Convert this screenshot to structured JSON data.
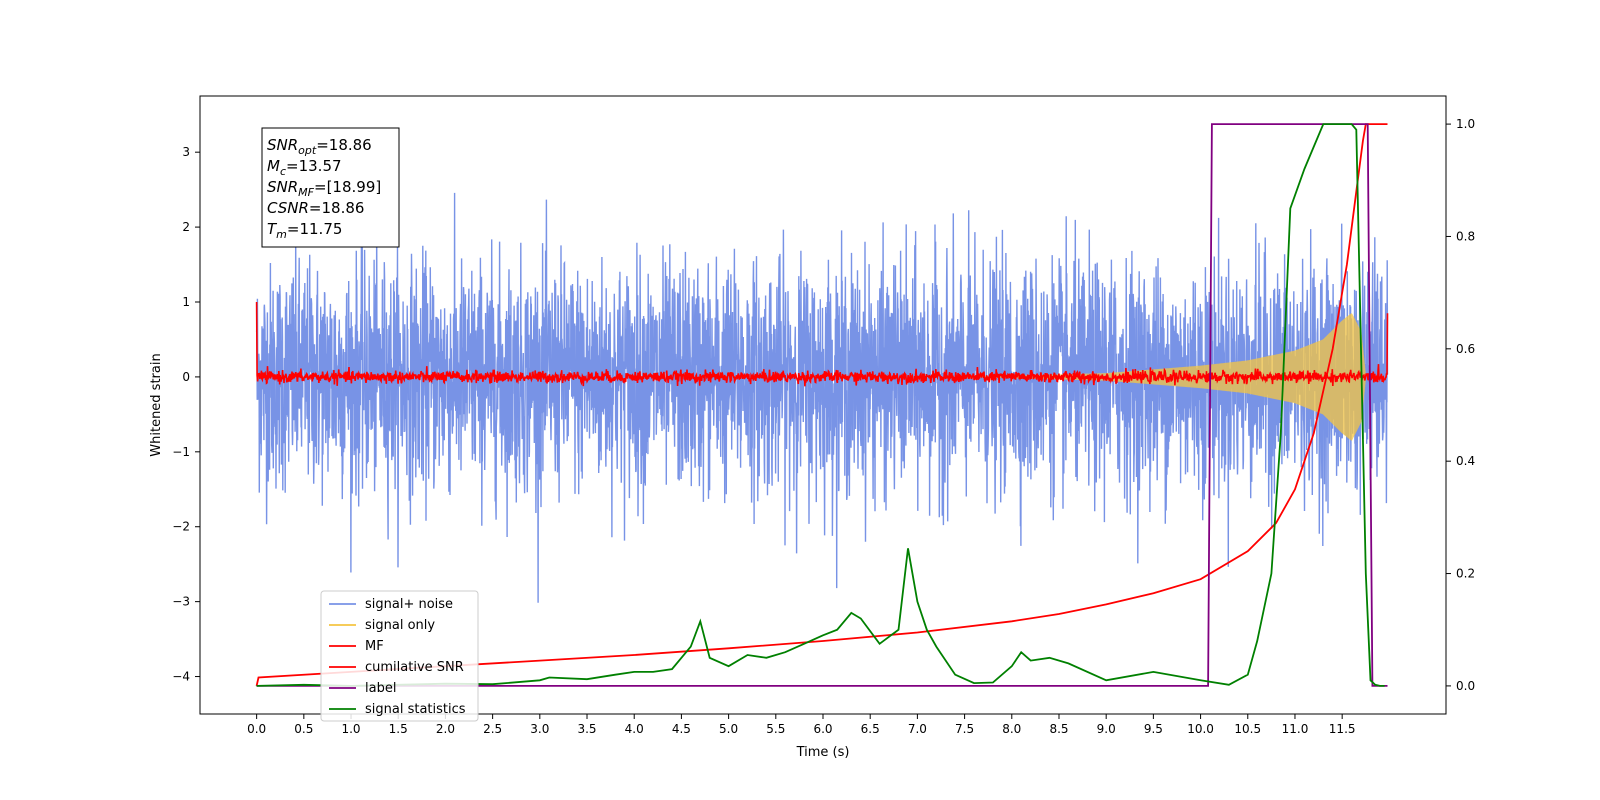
{
  "chart_data": {
    "type": "line",
    "xlabel": "Time (s)",
    "ylabel": "Whitened strain",
    "xlim": [
      -0.6,
      12.6
    ],
    "ylim": [
      -4.5,
      3.75
    ],
    "ylim_right": [
      -0.05,
      1.05
    ],
    "xticks": [
      "0.0",
      "0.5",
      "1.0",
      "1.5",
      "2.0",
      "2.5",
      "3.0",
      "3.5",
      "4.0",
      "4.5",
      "5.0",
      "5.5",
      "6.0",
      "6.5",
      "7.0",
      "7.5",
      "8.0",
      "8.5",
      "9.0",
      "9.5",
      "10.0",
      "10.5",
      "11.0",
      "11.5"
    ],
    "yticks_left": [
      "−4",
      "−3",
      "−2",
      "−1",
      "0",
      "1",
      "2",
      "3"
    ],
    "yticks_right": [
      "0.0",
      "0.2",
      "0.4",
      "0.6",
      "0.8",
      "1.0"
    ],
    "annotation": {
      "lines": [
        {
          "sym": "SNR",
          "sub": "opt",
          "val": "=18.86"
        },
        {
          "sym": "M",
          "sub": "c",
          "val": "=13.57"
        },
        {
          "sym": "SNR",
          "sub": "MF",
          "val": "=[18.99]"
        },
        {
          "sym": "CSNR",
          "sub": "",
          "val": "=18.86"
        },
        {
          "sym": "T",
          "sub": "m",
          "val": "=11.75"
        }
      ]
    },
    "legend": {
      "position": "lower-left",
      "entries": [
        {
          "label": "signal+ noise",
          "color": "#7893e6"
        },
        {
          "label": "signal only",
          "color": "#f5c542"
        },
        {
          "label": "MF",
          "color": "#ff0000"
        },
        {
          "label": "cumilative SNR",
          "color": "#ff0000"
        },
        {
          "label": "label",
          "color": "#800080"
        },
        {
          "label": "signal statistics",
          "color": "#008000"
        }
      ]
    },
    "series": [
      {
        "name": "signal+ noise",
        "color": "#7893e6",
        "axis": "left",
        "description_points": {
          "x_range": [
            0.0,
            11.98
          ],
          "approx_std": 0.75
        }
      },
      {
        "name": "signal only",
        "color": "#f5c542",
        "axis": "left",
        "envelope": {
          "x": [
            9.0,
            9.5,
            10.0,
            10.5,
            11.0,
            11.3,
            11.5,
            11.6,
            11.7,
            11.75
          ],
          "amp": [
            0.05,
            0.1,
            0.15,
            0.22,
            0.35,
            0.5,
            0.75,
            0.85,
            0.6,
            0.0
          ]
        }
      },
      {
        "name": "MF",
        "color": "#ff0000",
        "axis": "left",
        "description_points": {
          "x_range": [
            0.0,
            11.98
          ],
          "approx_std": 0.04,
          "start": 1.0,
          "end": 0.85
        }
      },
      {
        "name": "cumilative SNR",
        "color": "#ff0000",
        "axis": "right",
        "x": [
          0.0,
          0.02,
          1.0,
          2.0,
          3.0,
          4.0,
          5.0,
          6.0,
          7.0,
          8.0,
          8.5,
          9.0,
          9.5,
          10.0,
          10.5,
          10.8,
          11.0,
          11.2,
          11.4,
          11.55,
          11.65,
          11.72,
          11.75,
          11.98
        ],
        "y": [
          0.0,
          0.015,
          0.025,
          0.035,
          0.045,
          0.055,
          0.067,
          0.08,
          0.095,
          0.115,
          0.128,
          0.145,
          0.165,
          0.19,
          0.24,
          0.29,
          0.35,
          0.45,
          0.6,
          0.75,
          0.88,
          0.97,
          1.0,
          1.0
        ]
      },
      {
        "name": "label",
        "color": "#800080",
        "axis": "right",
        "x": [
          0.0,
          10.08,
          10.12,
          11.77,
          11.82,
          11.98
        ],
        "y": [
          0.0,
          0.0,
          1.0,
          1.0,
          0.0,
          0.0
        ]
      },
      {
        "name": "signal statistics",
        "color": "#008000",
        "axis": "right",
        "x": [
          0.0,
          0.5,
          1.0,
          1.5,
          2.0,
          2.5,
          3.0,
          3.1,
          3.5,
          3.8,
          4.0,
          4.2,
          4.4,
          4.6,
          4.7,
          4.8,
          5.0,
          5.2,
          5.4,
          5.6,
          5.8,
          6.0,
          6.15,
          6.3,
          6.4,
          6.6,
          6.8,
          6.9,
          7.0,
          7.1,
          7.2,
          7.4,
          7.6,
          7.8,
          8.0,
          8.1,
          8.2,
          8.4,
          8.6,
          9.0,
          9.5,
          10.0,
          10.3,
          10.5,
          10.6,
          10.75,
          10.85,
          10.95,
          11.1,
          11.2,
          11.3,
          11.5,
          11.6,
          11.65,
          11.7,
          11.75,
          11.8,
          11.85,
          11.9,
          11.95
        ],
        "y": [
          0.0,
          0.002,
          0.0,
          0.002,
          0.004,
          0.003,
          0.01,
          0.015,
          0.012,
          0.02,
          0.025,
          0.025,
          0.03,
          0.07,
          0.115,
          0.05,
          0.035,
          0.055,
          0.05,
          0.06,
          0.075,
          0.09,
          0.1,
          0.13,
          0.12,
          0.075,
          0.1,
          0.245,
          0.15,
          0.1,
          0.07,
          0.02,
          0.005,
          0.006,
          0.035,
          0.06,
          0.045,
          0.05,
          0.04,
          0.01,
          0.025,
          0.01,
          0.002,
          0.02,
          0.08,
          0.2,
          0.45,
          0.85,
          0.92,
          0.96,
          1.0,
          1.0,
          1.0,
          0.99,
          0.6,
          0.2,
          0.01,
          0.002,
          0.0,
          0.0
        ]
      }
    ]
  }
}
